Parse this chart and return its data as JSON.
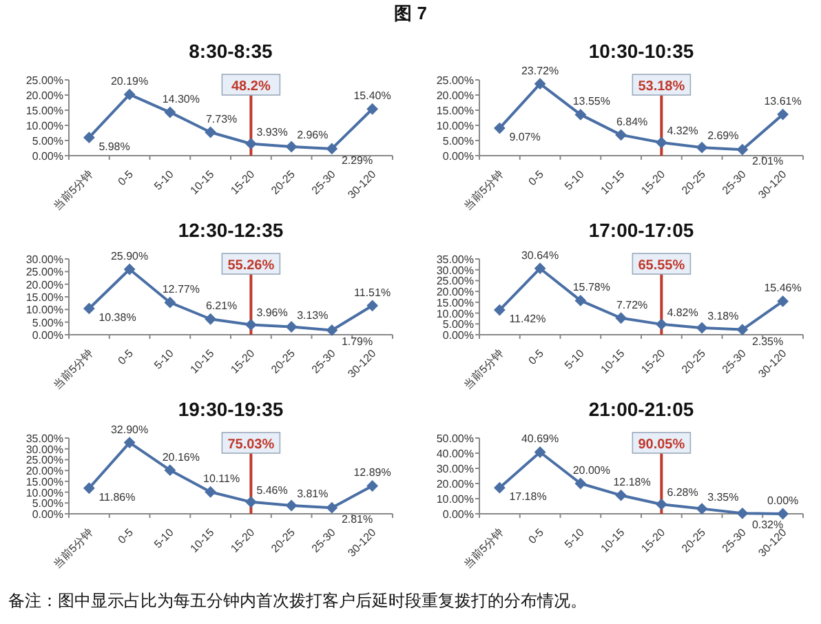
{
  "chart_data": [
    {
      "type": "line",
      "title": "8:30-8:35",
      "annotations": [
        "图 7"
      ],
      "categories": [
        "当前5分钟",
        "0-5",
        "5-10",
        "10-15",
        "15-20",
        "20-25",
        "25-30",
        "30-120"
      ],
      "series": [
        {
          "color": "#4a6fa5",
          "values": [
            5.98,
            20.19,
            14.3,
            7.73,
            3.93,
            2.96,
            2.29,
            15.4
          ],
          "value_labels": [
            "5.98%",
            "20.19%",
            "14.30%",
            "7.73%",
            "3.93%",
            "2.96%",
            "2.29%",
            "15.40%"
          ]
        }
      ],
      "ylim": [
        0,
        25
      ],
      "yticks": [
        {
          "value": 0,
          "label": "0.00%"
        },
        {
          "value": 5,
          "label": "5.00%"
        },
        {
          "value": 10,
          "label": "10.00%"
        },
        {
          "value": 15,
          "label": "15.00%"
        },
        {
          "value": 20,
          "label": "20.00%"
        },
        {
          "value": 25,
          "label": "25.00%"
        }
      ],
      "ref_lines": [
        {
          "axis": "x",
          "value": "15-20",
          "label": "48.2%",
          "color": "#c0392b"
        }
      ],
      "marker": "diamond",
      "grid": false
    },
    {
      "type": "line",
      "title": "10:30-10:35",
      "categories": [
        "当前5分钟",
        "0-5",
        "5-10",
        "10-15",
        "15-20",
        "20-25",
        "25-30",
        "30-120"
      ],
      "series": [
        {
          "color": "#4a6fa5",
          "values": [
            9.07,
            23.72,
            13.55,
            6.84,
            4.32,
            2.69,
            2.01,
            13.61
          ],
          "value_labels": [
            "9.07%",
            "23.72%",
            "13.55%",
            "6.84%",
            "4.32%",
            "2.69%",
            "2.01%",
            "13.61%"
          ]
        }
      ],
      "ylim": [
        0,
        25
      ],
      "yticks": [
        {
          "value": 0,
          "label": "0.00%"
        },
        {
          "value": 5,
          "label": "5.00%"
        },
        {
          "value": 10,
          "label": "10.00%"
        },
        {
          "value": 15,
          "label": "15.00%"
        },
        {
          "value": 20,
          "label": "20.00%"
        },
        {
          "value": 25,
          "label": "25.00%"
        }
      ],
      "ref_lines": [
        {
          "axis": "x",
          "value": "15-20",
          "label": "53.18%",
          "color": "#c0392b"
        }
      ],
      "marker": "diamond",
      "grid": false
    },
    {
      "type": "line",
      "title": "12:30-12:35",
      "categories": [
        "当前5分钟",
        "0-5",
        "5-10",
        "10-15",
        "15-20",
        "20-25",
        "25-30",
        "30-120"
      ],
      "series": [
        {
          "color": "#4a6fa5",
          "values": [
            10.38,
            25.9,
            12.77,
            6.21,
            3.96,
            3.13,
            1.79,
            11.51
          ],
          "value_labels": [
            "10.38%",
            "25.90%",
            "12.77%",
            "6.21%",
            "3.96%",
            "3.13%",
            "1.79%",
            "11.51%"
          ]
        }
      ],
      "ylim": [
        0,
        30
      ],
      "yticks": [
        {
          "value": 0,
          "label": "0.00%"
        },
        {
          "value": 5,
          "label": "5.00%"
        },
        {
          "value": 10,
          "label": "10.00%"
        },
        {
          "value": 15,
          "label": "15.00%"
        },
        {
          "value": 20,
          "label": "20.00%"
        },
        {
          "value": 25,
          "label": "25.00%"
        },
        {
          "value": 30,
          "label": "30.00%"
        }
      ],
      "ref_lines": [
        {
          "axis": "x",
          "value": "15-20",
          "label": "55.26%",
          "color": "#c0392b"
        }
      ],
      "marker": "diamond",
      "grid": false
    },
    {
      "type": "line",
      "title": "17:00-17:05",
      "categories": [
        "当前5分钟",
        "0-5",
        "5-10",
        "10-15",
        "15-20",
        "20-25",
        "25-30",
        "30-120"
      ],
      "series": [
        {
          "color": "#4a6fa5",
          "values": [
            11.42,
            30.64,
            15.78,
            7.72,
            4.82,
            3.18,
            2.35,
            15.46
          ],
          "value_labels": [
            "11.42%",
            "30.64%",
            "15.78%",
            "7.72%",
            "4.82%",
            "3.18%",
            "2.35%",
            "15.46%"
          ]
        }
      ],
      "ylim": [
        0,
        35
      ],
      "yticks": [
        {
          "value": 0,
          "label": "0.00%"
        },
        {
          "value": 5,
          "label": "5.00%"
        },
        {
          "value": 10,
          "label": "10.00%"
        },
        {
          "value": 15,
          "label": "15.00%"
        },
        {
          "value": 20,
          "label": "20.00%"
        },
        {
          "value": 25,
          "label": "25.00%"
        },
        {
          "value": 30,
          "label": "30.00%"
        },
        {
          "value": 35,
          "label": "35.00%"
        }
      ],
      "ref_lines": [
        {
          "axis": "x",
          "value": "15-20",
          "label": "65.55%",
          "color": "#c0392b"
        }
      ],
      "marker": "diamond",
      "grid": false
    },
    {
      "type": "line",
      "title": "19:30-19:35",
      "categories": [
        "当前5分钟",
        "0-5",
        "5-10",
        "10-15",
        "15-20",
        "20-25",
        "25-30",
        "30-120"
      ],
      "series": [
        {
          "color": "#4a6fa5",
          "values": [
            11.86,
            32.9,
            20.16,
            10.11,
            5.46,
            3.81,
            2.81,
            12.89
          ],
          "value_labels": [
            "11.86%",
            "32.90%",
            "20.16%",
            "10.11%",
            "5.46%",
            "3.81%",
            "2.81%",
            "12.89%"
          ]
        }
      ],
      "ylim": [
        0,
        35
      ],
      "yticks": [
        {
          "value": 0,
          "label": "0.00%"
        },
        {
          "value": 5,
          "label": "5.00%"
        },
        {
          "value": 10,
          "label": "10.00%"
        },
        {
          "value": 15,
          "label": "15.00%"
        },
        {
          "value": 20,
          "label": "20.00%"
        },
        {
          "value": 25,
          "label": "25.00%"
        },
        {
          "value": 30,
          "label": "30.00%"
        },
        {
          "value": 35,
          "label": "35.00%"
        }
      ],
      "ref_lines": [
        {
          "axis": "x",
          "value": "15-20",
          "label": "75.03%",
          "color": "#c0392b"
        }
      ],
      "marker": "diamond",
      "grid": false
    },
    {
      "type": "line",
      "title": "21:00-21:05",
      "annotations": [
        "备注：图中显示占比为每五分钟内首次拨打客户后延时段重复拨打的分布情况。"
      ],
      "categories": [
        "当前5分钟",
        "0-5",
        "5-10",
        "10-15",
        "15-20",
        "20-25",
        "25-30",
        "30-120"
      ],
      "series": [
        {
          "color": "#4a6fa5",
          "values": [
            17.18,
            40.69,
            20.0,
            12.18,
            6.28,
            3.35,
            0.32,
            0.0
          ],
          "value_labels": [
            "17.18%",
            "40.69%",
            "20.00%",
            "12.18%",
            "6.28%",
            "3.35%",
            "0.32%",
            "0.00%"
          ]
        }
      ],
      "ylim": [
        0,
        50
      ],
      "yticks": [
        {
          "value": 0,
          "label": "0.00%"
        },
        {
          "value": 10,
          "label": "10.00%"
        },
        {
          "value": 20,
          "label": "20.00%"
        },
        {
          "value": 30,
          "label": "30.00%"
        },
        {
          "value": 40,
          "label": "40.00%"
        },
        {
          "value": 50,
          "label": "50.00%"
        }
      ],
      "ref_lines": [
        {
          "axis": "x",
          "value": "15-20",
          "label": "90.05%",
          "color": "#c0392b"
        }
      ],
      "marker": "diamond",
      "grid": false
    }
  ]
}
